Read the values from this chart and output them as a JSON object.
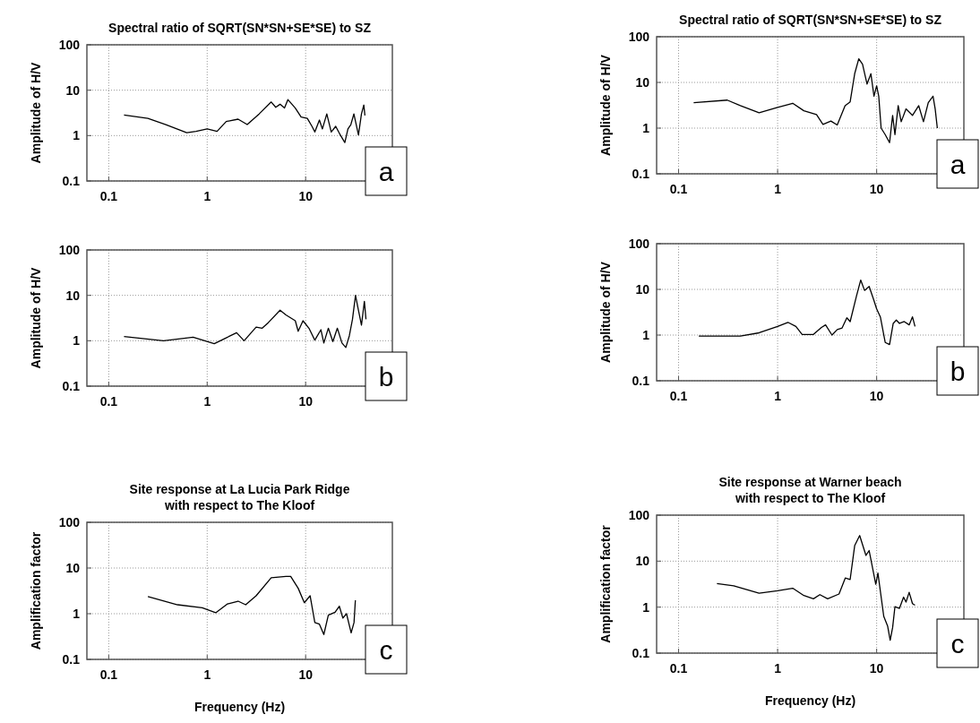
{
  "chart_data": [
    {
      "type": "line",
      "title": "Spectral ratio of SQRT(SN*SN+SE*SE) to SZ",
      "ylabel": "Amplitude of H/V",
      "log": "xy",
      "xlim": [
        0.06,
        76
      ],
      "ylim": [
        0.1,
        100
      ],
      "xticks": [
        0.1,
        1,
        10
      ],
      "yticks": [
        0.1,
        1,
        10,
        100
      ],
      "grid": true,
      "marker": "none",
      "line_style": "solid",
      "color": "#000000",
      "annotations": [
        "a"
      ],
      "x": [
        0.143,
        0.25,
        0.38,
        0.62,
        0.77,
        1.0,
        1.26,
        1.56,
        2.06,
        2.55,
        3.37,
        4.47,
        4.97,
        5.5,
        6.1,
        6.6,
        7.85,
        9.0,
        10.4,
        11.6,
        12.4,
        13.8,
        14.8,
        16.4,
        18.2,
        20.2,
        22.5,
        25,
        26.9,
        28.8,
        30.9,
        34.4,
        36.9,
        39,
        40
      ],
      "values": [
        2.85,
        2.4,
        1.75,
        1.16,
        1.24,
        1.4,
        1.24,
        2.04,
        2.3,
        1.75,
        3.0,
        5.5,
        4.2,
        4.9,
        4.05,
        6.2,
        4.05,
        2.56,
        2.4,
        1.6,
        1.2,
        2.2,
        1.4,
        3.0,
        1.2,
        1.6,
        1.03,
        0.7,
        1.4,
        1.75,
        3.0,
        1.03,
        3.0,
        4.7,
        2.77
      ]
    },
    {
      "type": "line",
      "title": "Spectral ratio of SQRT(SN*SN+SE*SE) to SZ",
      "ylabel": "Amplitude of H/V",
      "log": "xy",
      "xlim": [
        0.06,
        76
      ],
      "ylim": [
        0.1,
        100
      ],
      "xticks": [
        0.1,
        1,
        10
      ],
      "yticks": [
        0.1,
        1,
        10,
        100
      ],
      "grid": true,
      "marker": "none",
      "line_style": "solid",
      "color": "#000000",
      "annotations": [
        "a"
      ],
      "x": [
        0.142,
        0.31,
        0.42,
        0.65,
        1.0,
        1.42,
        1.84,
        2.47,
        2.87,
        3.45,
        4.0,
        4.8,
        5.4,
        6.0,
        6.6,
        7.2,
        8.0,
        8.75,
        9.4,
        10.0,
        10.5,
        11.1,
        12.2,
        13.5,
        14.5,
        15.3,
        16.5,
        17.7,
        19.8,
        23.0,
        26.6,
        29.7,
        33.2,
        37.1,
        39,
        41
      ],
      "values": [
        3.6,
        4.1,
        3.1,
        2.17,
        2.85,
        3.5,
        2.4,
        1.97,
        1.21,
        1.43,
        1.17,
        3.1,
        3.75,
        15.5,
        33,
        25,
        9.2,
        15.5,
        5.0,
        8.4,
        5.0,
        1.0,
        0.72,
        0.48,
        1.9,
        0.72,
        3.1,
        1.38,
        2.63,
        1.9,
        3.1,
        1.38,
        3.6,
        5.0,
        2.63,
        1.0
      ]
    },
    {
      "type": "line",
      "ylabel": "Amplitude of H/V",
      "log": "xy",
      "xlim": [
        0.06,
        76
      ],
      "ylim": [
        0.1,
        100
      ],
      "xticks": [
        0.1,
        1,
        10
      ],
      "yticks": [
        0.1,
        1,
        10,
        100
      ],
      "grid": true,
      "marker": "none",
      "line_style": "solid",
      "color": "#000000",
      "annotations": [
        "b"
      ],
      "x": [
        0.143,
        0.36,
        0.72,
        1.18,
        1.56,
        1.99,
        2.37,
        3.14,
        3.62,
        4.17,
        5.5,
        6.3,
        7.85,
        8.4,
        9.4,
        10.8,
        12.4,
        14.3,
        15.3,
        17.0,
        18.9,
        21.0,
        23.4,
        25.6,
        27.8,
        29.9,
        32.1,
        34.4,
        36.9,
        39.5,
        41
      ],
      "values": [
        1.24,
        1.0,
        1.2,
        0.86,
        1.16,
        1.5,
        1.0,
        2.0,
        1.89,
        2.5,
        4.7,
        3.7,
        2.76,
        1.62,
        2.76,
        1.89,
        1.03,
        1.75,
        0.89,
        1.89,
        0.96,
        1.89,
        0.89,
        0.71,
        1.29,
        2.97,
        10,
        4.7,
        2.2,
        7.4,
        2.97
      ]
    },
    {
      "type": "line",
      "ylabel": "Amplitude of H/V",
      "log": "xy",
      "xlim": [
        0.06,
        76
      ],
      "ylim": [
        0.1,
        100
      ],
      "xticks": [
        0.1,
        1,
        10
      ],
      "yticks": [
        0.1,
        1,
        10,
        100
      ],
      "grid": true,
      "marker": "none",
      "line_style": "solid",
      "color": "#000000",
      "annotations": [
        "b"
      ],
      "x": [
        0.16,
        0.42,
        0.65,
        1.0,
        1.27,
        1.53,
        1.77,
        2.3,
        2.77,
        3.05,
        3.54,
        4.0,
        4.48,
        5.0,
        5.4,
        6.25,
        6.9,
        7.55,
        8.4,
        9.3,
        10.0,
        10.9,
        12.2,
        13.5,
        14.7,
        15.8,
        17.0,
        19.0,
        21.3,
        23.0,
        24.4
      ],
      "values": [
        0.95,
        0.95,
        1.12,
        1.54,
        1.9,
        1.54,
        1.03,
        1.03,
        1.47,
        1.67,
        1.0,
        1.32,
        1.43,
        2.38,
        1.97,
        7.1,
        16,
        9.5,
        11.6,
        6.1,
        3.75,
        2.5,
        0.69,
        0.62,
        1.8,
        2.13,
        1.8,
        1.97,
        1.67,
        2.5,
        1.54
      ]
    },
    {
      "type": "line",
      "title": "Site response at La Lucia Park Ridge\nwith respect to The Kloof",
      "xlabel": "Frequency (Hz)",
      "ylabel": "Amplification factor",
      "log": "xy",
      "xlim": [
        0.06,
        76
      ],
      "ylim": [
        0.1,
        100
      ],
      "xticks": [
        0.1,
        1,
        10
      ],
      "yticks": [
        0.1,
        1,
        10,
        100
      ],
      "grid": true,
      "marker": "none",
      "line_style": "solid",
      "color": "#000000",
      "annotations": [
        "c"
      ],
      "x": [
        0.25,
        0.5,
        0.89,
        1.22,
        1.61,
        2.06,
        2.46,
        3.14,
        4.47,
        6.3,
        7.05,
        8.4,
        9.7,
        11.1,
        12.4,
        13.8,
        15.3,
        17.0,
        19.9,
        22,
        23.9,
        26.0,
        29,
        31,
        32
      ],
      "values": [
        2.36,
        1.57,
        1.35,
        1.05,
        1.64,
        1.88,
        1.57,
        2.47,
        6.1,
        6.55,
        6.55,
        3.6,
        1.74,
        2.47,
        0.64,
        0.59,
        0.35,
        0.93,
        1.08,
        1.46,
        0.8,
        1.0,
        0.38,
        0.64,
        1.97
      ]
    },
    {
      "type": "line",
      "title": "Site response at Warner beach\nwith respect to The Kloof",
      "xlabel": "Frequency (Hz)",
      "ylabel": "Amplification factor",
      "log": "xy",
      "xlim": [
        0.06,
        76
      ],
      "ylim": [
        0.1,
        100
      ],
      "xticks": [
        0.1,
        1,
        10
      ],
      "yticks": [
        0.1,
        1,
        10,
        100
      ],
      "grid": true,
      "marker": "none",
      "line_style": "solid",
      "color": "#000000",
      "annotations": [
        "c"
      ],
      "x": [
        0.244,
        0.36,
        0.65,
        1.0,
        1.42,
        1.84,
        2.3,
        2.67,
        3.2,
        4.17,
        4.82,
        5.4,
        6.0,
        6.74,
        7.8,
        8.4,
        9.8,
        10.3,
        11.8,
        12.9,
        13.7,
        14.5,
        15.3,
        17.0,
        18.7,
        19.8,
        21.3,
        23.0,
        24.4
      ],
      "values": [
        3.24,
        2.9,
        2.0,
        2.27,
        2.58,
        1.79,
        1.52,
        1.87,
        1.52,
        1.93,
        4.3,
        4.0,
        21.7,
        36,
        13.3,
        17,
        3.14,
        5.5,
        0.63,
        0.39,
        0.19,
        0.36,
        1.02,
        0.94,
        1.65,
        1.29,
        2.1,
        1.19,
        1.1
      ]
    }
  ]
}
